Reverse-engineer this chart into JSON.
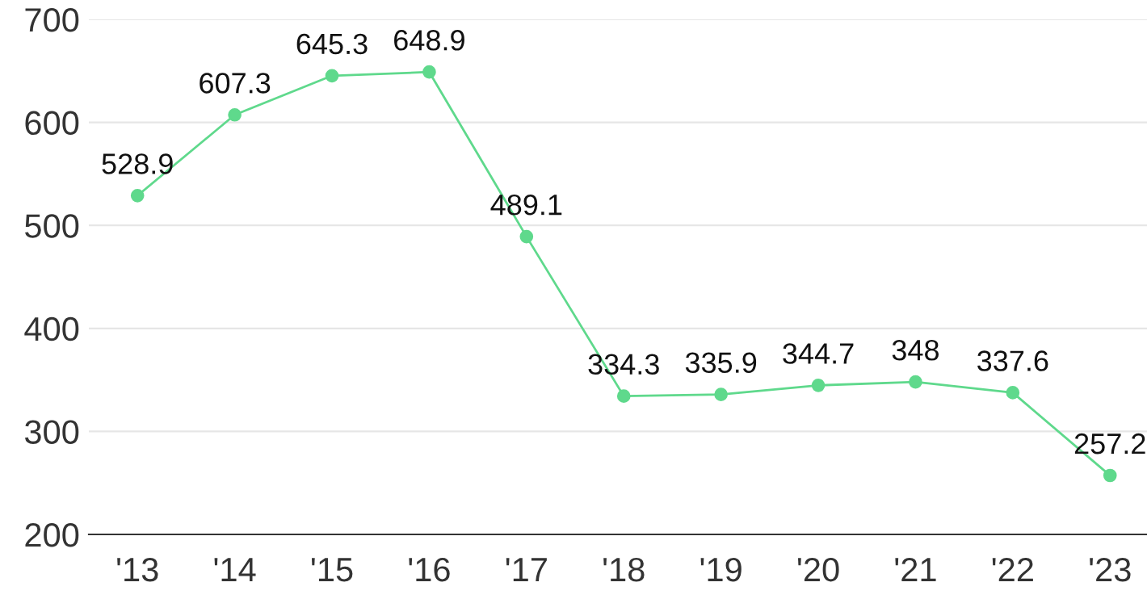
{
  "chart_data": {
    "type": "line",
    "categories": [
      "'13",
      "'14",
      "'15",
      "'16",
      "'17",
      "'18",
      "'19",
      "'20",
      "'21",
      "'22",
      "'23"
    ],
    "values": [
      528.9,
      607.3,
      645.3,
      648.9,
      489.1,
      334.3,
      335.9,
      344.7,
      348,
      337.6,
      257.2
    ],
    "color": "#5fd98c",
    "ylim": [
      200,
      700
    ],
    "yticks": [
      200,
      300,
      400,
      500,
      600,
      700
    ],
    "grid": "y",
    "marker": "circle",
    "line_style": "solid",
    "data_labels": true
  }
}
